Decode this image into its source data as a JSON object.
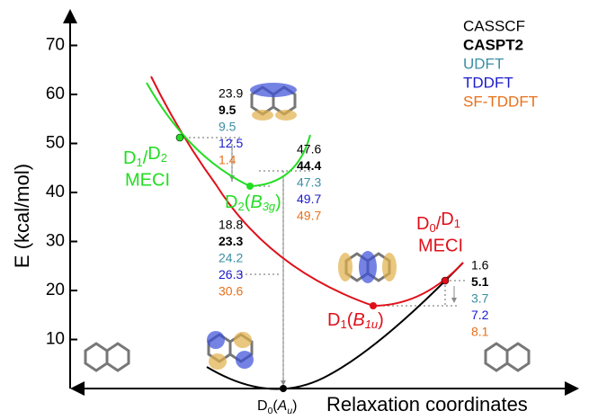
{
  "legend": [
    "CASSCF",
    "CASPT2",
    "UDFT",
    "TDDFT",
    "SF-TDDFT"
  ],
  "y_axis": {
    "label": "E (kcal/mol)",
    "ticks": [
      10,
      20,
      30,
      40,
      50,
      60,
      70
    ]
  },
  "x_axis": {
    "label": "Relaxation coordinates"
  },
  "states": {
    "d1d2": {
      "a": "D",
      "a_sub": "1",
      "sep": "/",
      "b": "D",
      "b_sub": "2",
      "kind": "MECI"
    },
    "d0d1": {
      "a": "D",
      "a_sub": "0",
      "sep": "/",
      "b": "D",
      "b_sub": "1",
      "kind": "MECI"
    },
    "d2": {
      "main": "D",
      "main_sub": "2",
      "sym": "B",
      "sym_sub": "3g"
    },
    "d1": {
      "main": "D",
      "main_sub": "1",
      "sym": "B",
      "sym_sub": "1u"
    },
    "d0": {
      "main": "D",
      "main_sub": "0",
      "sym": "A",
      "sym_sub": "u"
    }
  },
  "energy_columns": [
    [
      "23.9",
      "9.5",
      "9.5",
      "12.5",
      "1.4"
    ],
    [
      "47.6",
      "44.4",
      "47.3",
      "49.7",
      "49.7"
    ],
    [
      "18.8",
      "23.3",
      "24.2",
      "26.3",
      "30.6"
    ],
    [
      "1.6",
      "5.1",
      "3.7",
      "7.2",
      "8.1"
    ]
  ]
}
